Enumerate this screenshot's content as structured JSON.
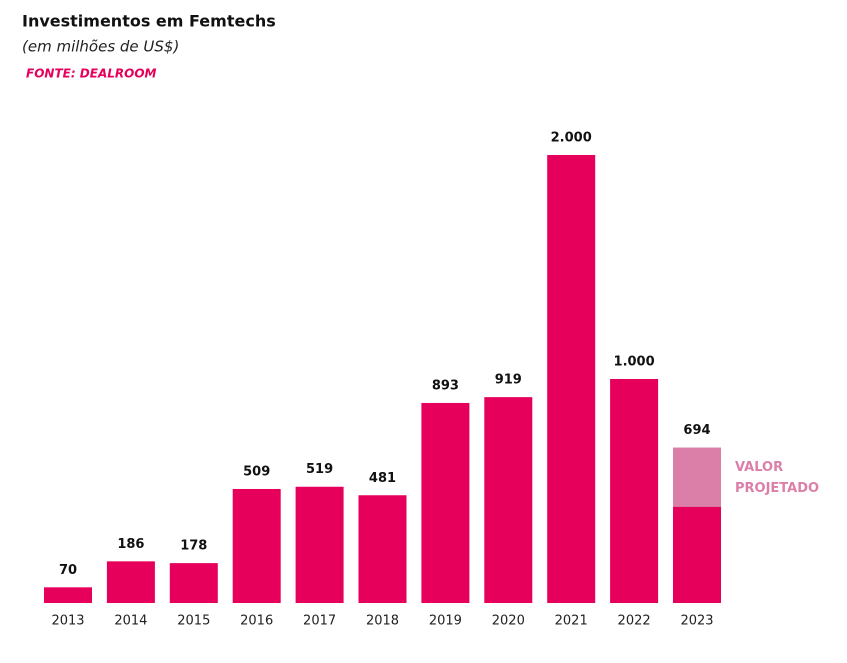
{
  "chart_data": {
    "type": "bar",
    "title": "Investimentos em Femtechs",
    "subtitle": "(em milhões de US$)",
    "source": "FONTE: DEALROOM",
    "categories": [
      "2013",
      "2014",
      "2015",
      "2016",
      "2017",
      "2018",
      "2019",
      "2020",
      "2021",
      "2022",
      "2023"
    ],
    "values": [
      70,
      186,
      178,
      509,
      519,
      481,
      893,
      919,
      2000,
      1000,
      694
    ],
    "value_labels": [
      "70",
      "186",
      "178",
      "509",
      "519",
      "481",
      "893",
      "919",
      "2.000",
      "1.000",
      "694"
    ],
    "color": "#e6005c",
    "projection": {
      "label": "VALOR PROJETADO",
      "color": "#db7fa9",
      "realized": [
        null,
        null,
        null,
        null,
        null,
        null,
        null,
        null,
        null,
        null,
        429
      ]
    },
    "ylim": [
      0,
      2000
    ]
  }
}
